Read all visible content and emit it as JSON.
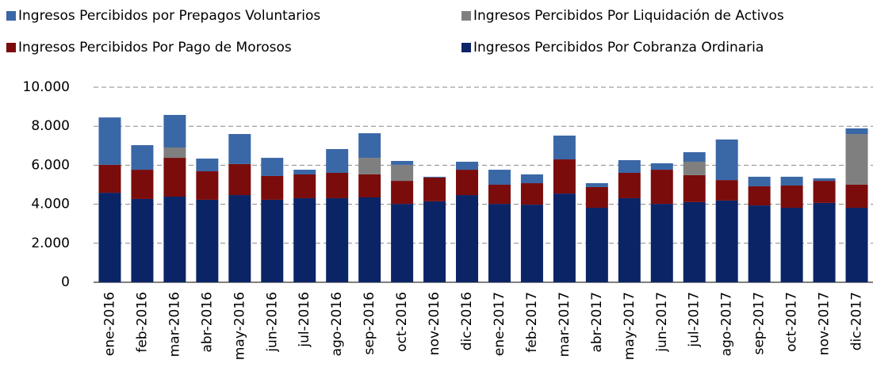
{
  "chart_data": {
    "type": "stacked-bar",
    "categories": [
      "ene-2016",
      "feb-2016",
      "mar-2016",
      "abr-2016",
      "may-2016",
      "jun-2016",
      "jul-2016",
      "ago-2016",
      "sep-2016",
      "oct-2016",
      "nov-2016",
      "dic-2016",
      "ene-2017",
      "feb-2017",
      "mar-2017",
      "abr-2017",
      "may-2017",
      "jun-2017",
      "jul-2017",
      "ago-2017",
      "sep-2017",
      "oct-2017",
      "nov-2017",
      "dic-2017"
    ],
    "series": [
      {
        "name": "Ingresos Percibidos Por Cobranza Ordinaria",
        "color": "#0b2466",
        "values": [
          4590,
          4270,
          4390,
          4230,
          4470,
          4230,
          4310,
          4310,
          4350,
          4020,
          4150,
          4470,
          4020,
          3980,
          4550,
          3820,
          4310,
          4020,
          4110,
          4190,
          3940,
          3820,
          4070,
          3820
        ]
      },
      {
        "name": "Ingresos Percibidos Por Pago de Morosos",
        "color": "#7b0c0c",
        "values": [
          1430,
          1500,
          1990,
          1460,
          1590,
          1220,
          1220,
          1300,
          1180,
          1180,
          1220,
          1300,
          980,
          1100,
          1750,
          1060,
          1300,
          1750,
          1380,
          1050,
          980,
          1140,
          1130,
          1180
        ]
      },
      {
        "name": "Ingresos Percibidos Por Liquidación de Activos",
        "color": "#7f7f7f",
        "values": [
          0,
          0,
          530,
          0,
          0,
          0,
          0,
          0,
          850,
          820,
          0,
          0,
          0,
          0,
          0,
          0,
          0,
          0,
          690,
          0,
          0,
          0,
          0,
          2600
        ]
      },
      {
        "name": "Ingresos Percibidos por Prepagos Voluntarios",
        "color": "#3a67a6",
        "values": [
          2430,
          1260,
          1670,
          650,
          1540,
          930,
          240,
          1220,
          1260,
          200,
          40,
          410,
          770,
          450,
          1220,
          200,
          650,
          330,
          490,
          2080,
          490,
          450,
          130,
          290
        ]
      }
    ],
    "ylim": [
      0,
      10000
    ],
    "yticks": [
      0,
      {
        "value": 2000,
        "label": "2.000"
      },
      {
        "value": 4000,
        "label": "4.000"
      },
      {
        "value": 6000,
        "label": "6.000"
      },
      {
        "value": 8000,
        "label": "8.000"
      },
      {
        "value": 10000,
        "label": "10.000"
      }
    ],
    "grid": true
  }
}
